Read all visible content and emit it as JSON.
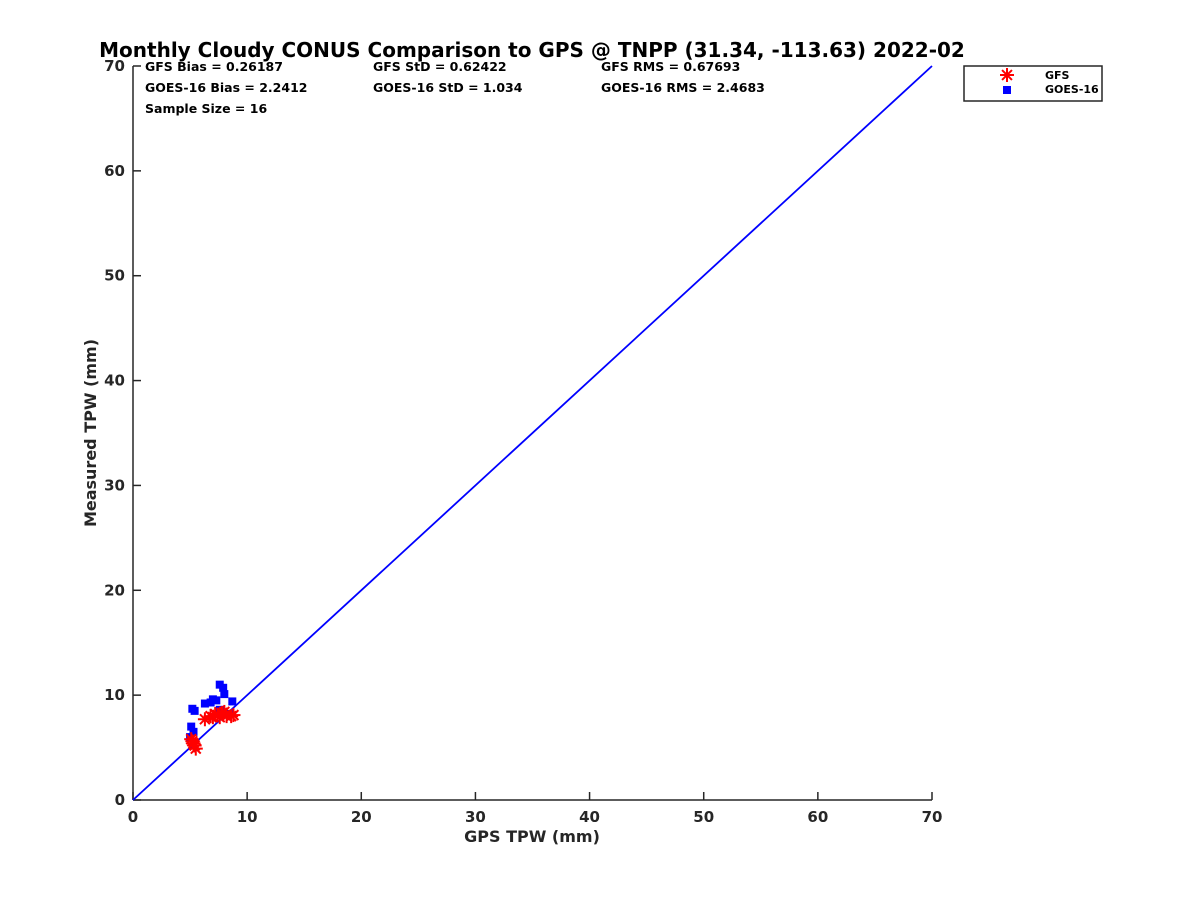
{
  "chart_data": {
    "type": "scatter",
    "title": "Monthly Cloudy CONUS Comparison to GPS @ TNPP (31.34, -113.63) 2022-02",
    "xlabel": "GPS TPW (mm)",
    "ylabel": "Measured TPW (mm)",
    "xlim": [
      0,
      70
    ],
    "ylim": [
      0,
      70
    ],
    "xticks": [
      "0",
      "10",
      "20",
      "30",
      "40",
      "50",
      "60",
      "70"
    ],
    "yticks": [
      "0",
      "10",
      "20",
      "30",
      "40",
      "50",
      "60",
      "70"
    ],
    "grid": false,
    "legend_position": "top-right, outside axes",
    "stats": {
      "gfs_bias": "GFS Bias = 0.26187",
      "gfs_std": "GFS StD = 0.62422",
      "gfs_rms": "GFS RMS = 0.67693",
      "goes_bias": "GOES-16 Bias = 2.2412",
      "goes_std": "GOES-16 StD = 1.034",
      "goes_rms": "GOES-16 RMS = 2.4683",
      "sample_size": "Sample Size = 16"
    },
    "reference_line": {
      "x": [
        0,
        70
      ],
      "y": [
        0,
        70
      ],
      "color": "#0000ff"
    },
    "series": [
      {
        "name": "GFS",
        "marker": "asterisk",
        "color": "#ff0000",
        "points": [
          [
            5.1,
            5.8
          ],
          [
            5.3,
            5.4
          ],
          [
            5.4,
            5.2
          ],
          [
            5.5,
            4.9
          ],
          [
            5.2,
            5.6
          ],
          [
            6.3,
            7.7
          ],
          [
            6.8,
            8.0
          ],
          [
            7.0,
            7.9
          ],
          [
            7.2,
            8.2
          ],
          [
            7.4,
            8.1
          ],
          [
            7.6,
            7.9
          ],
          [
            7.8,
            8.3
          ],
          [
            8.0,
            8.4
          ],
          [
            8.2,
            8.0
          ],
          [
            8.6,
            8.0
          ],
          [
            8.8,
            8.1
          ]
        ]
      },
      {
        "name": "GOES-16",
        "marker": "square",
        "color": "#0000ff",
        "points": [
          [
            5.2,
            8.7
          ],
          [
            5.4,
            8.5
          ],
          [
            5.1,
            7.0
          ],
          [
            5.3,
            6.5
          ],
          [
            5.0,
            6.0
          ],
          [
            6.3,
            9.2
          ],
          [
            6.8,
            9.3
          ],
          [
            7.0,
            9.6
          ],
          [
            7.3,
            9.5
          ],
          [
            7.6,
            11.0
          ],
          [
            7.9,
            10.7
          ],
          [
            8.0,
            10.1
          ],
          [
            7.6,
            8.6
          ],
          [
            7.9,
            8.3
          ],
          [
            8.5,
            8.2
          ],
          [
            8.7,
            9.4
          ]
        ]
      }
    ]
  }
}
